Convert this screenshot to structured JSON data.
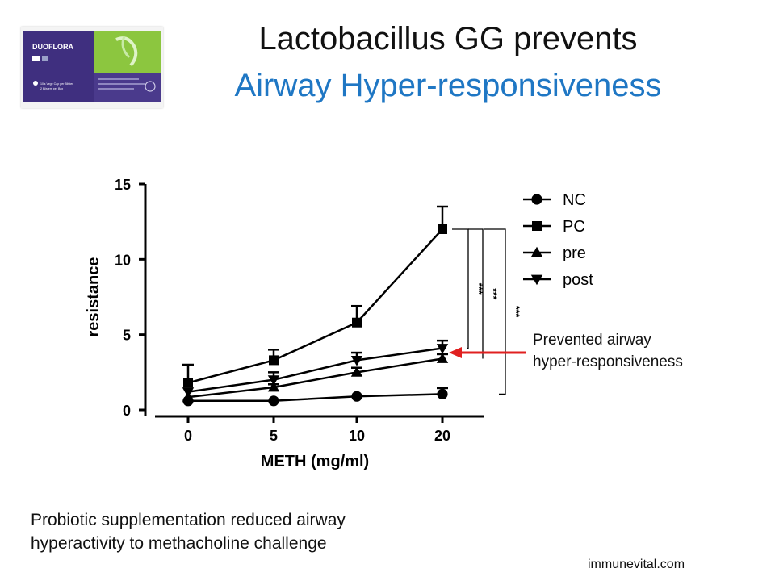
{
  "slide": {
    "title_line1": "Lactobacillus GG prevents",
    "title_line2": "Airway Hyper-responsiveness",
    "caption_line1": "Probiotic supplementation reduced airway",
    "caption_line2": "hyperactivity to methacholine challenge",
    "annotation_line1": "Prevented airway",
    "annotation_line2": "hyper-responsiveness",
    "website": "immunevital.com",
    "title2_color": "#1f77c4",
    "arrow_color": "#e02020"
  },
  "product": {
    "brand": "DUOFLORA",
    "text1": "10's Vege Cap per Blister",
    "text2": "2 Blisters per Box",
    "colors": {
      "purple": "#3f2f7f",
      "green": "#8cc63f"
    }
  },
  "chart_data": {
    "type": "line",
    "xlabel": "METH (mg/ml)",
    "ylabel": "resistance",
    "x": [
      0,
      5,
      10,
      20
    ],
    "x_tick_labels": [
      "0",
      "5",
      "10",
      "20"
    ],
    "y_ticks": [
      0,
      5,
      10,
      15
    ],
    "y_tick_labels": [
      "0",
      "5",
      "10",
      "15"
    ],
    "ylim": [
      0,
      15
    ],
    "grid": false,
    "legend_position": "top-right",
    "series": [
      {
        "name": "NC",
        "marker": "circle",
        "values": [
          0.6,
          0.6,
          0.9,
          1.05
        ],
        "errors": [
          0.1,
          0.1,
          0.1,
          0.4
        ]
      },
      {
        "name": "PC",
        "marker": "square",
        "values": [
          1.8,
          3.3,
          5.8,
          12.0
        ],
        "errors": [
          1.2,
          0.7,
          1.1,
          1.5
        ]
      },
      {
        "name": "pre",
        "marker": "triangle-up",
        "values": [
          0.85,
          1.5,
          2.5,
          3.4
        ],
        "errors": [
          0.1,
          0.2,
          0.3,
          0.3
        ]
      },
      {
        "name": "post",
        "marker": "triangle-down",
        "values": [
          1.2,
          2.0,
          3.3,
          4.1
        ],
        "errors": [
          0.1,
          0.5,
          0.5,
          0.5
        ]
      }
    ],
    "significance": [
      {
        "label": "***",
        "from": "PC",
        "to": "post"
      },
      {
        "label": "***",
        "from": "PC",
        "to": "pre"
      },
      {
        "label": "***",
        "from": "PC",
        "to": "NC"
      }
    ]
  }
}
